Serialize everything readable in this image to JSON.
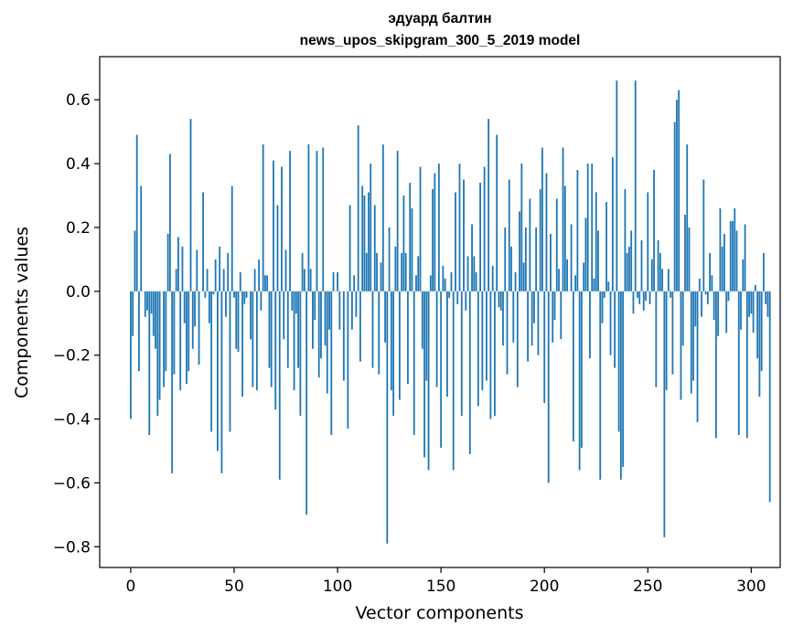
{
  "chart_data": {
    "type": "bar",
    "title_lines": [
      "эдуард балтин",
      "news_upos_skipgram_300_5_2019 model"
    ],
    "xlabel": "Vector components",
    "ylabel": "Components values",
    "xlim": [
      -15,
      314
    ],
    "ylim": [
      -0.865,
      0.735
    ],
    "xticks": [
      0,
      50,
      100,
      150,
      200,
      250,
      300
    ],
    "yticks": [
      -0.8,
      -0.6,
      -0.4,
      -0.2,
      0.0,
      0.2,
      0.4,
      0.6
    ],
    "ytick_labels": [
      "−0.8",
      "−0.6",
      "−0.4",
      "−0.2",
      "0.0",
      "0.2",
      "0.4",
      "0.6"
    ],
    "bar_color": "#1f77b4",
    "grid": false,
    "values": [
      -0.4,
      -0.14,
      0.19,
      0.49,
      -0.25,
      0.33,
      0.0,
      -0.08,
      -0.06,
      -0.45,
      -0.07,
      -0.14,
      -0.18,
      -0.39,
      -0.34,
      0.0,
      -0.3,
      -0.25,
      0.18,
      0.43,
      -0.57,
      -0.26,
      0.07,
      0.17,
      -0.31,
      0.14,
      -0.1,
      -0.29,
      -0.25,
      0.54,
      -0.18,
      -0.11,
      0.13,
      -0.23,
      0.0,
      0.31,
      -0.02,
      0.07,
      -0.1,
      -0.44,
      -0.01,
      0.1,
      -0.5,
      0.14,
      -0.57,
      0.07,
      -0.08,
      0.12,
      -0.44,
      0.33,
      -0.02,
      -0.18,
      -0.19,
      0.06,
      -0.33,
      -0.04,
      -0.02,
      0.0,
      -0.15,
      -0.3,
      0.07,
      -0.31,
      0.1,
      -0.06,
      0.46,
      0.05,
      0.05,
      -0.24,
      -0.3,
      0.41,
      -0.37,
      0.27,
      -0.59,
      0.39,
      -0.15,
      0.13,
      -0.24,
      0.44,
      -0.06,
      -0.31,
      -0.07,
      -0.24,
      -0.39,
      0.12,
      0.07,
      -0.7,
      0.46,
      0.07,
      -0.18,
      -0.09,
      0.44,
      -0.27,
      -0.21,
      0.45,
      -0.17,
      -0.32,
      -0.12,
      -0.45,
      0.06,
      0.0,
      0.06,
      -0.12,
      0.0,
      -0.28,
      0.0,
      -0.43,
      0.27,
      -0.12,
      0.05,
      -0.08,
      0.52,
      -0.22,
      0.33,
      0.3,
      0.12,
      0.31,
      0.4,
      -0.24,
      0.27,
      0.12,
      -0.26,
      0.09,
      0.46,
      -0.16,
      -0.79,
      0.2,
      -0.31,
      -0.39,
      0.14,
      0.44,
      -0.34,
      0.12,
      0.3,
      0.12,
      -0.29,
      0.34,
      0.26,
      -0.45,
      0.05,
      0.11,
      0.39,
      -0.18,
      -0.52,
      -0.28,
      -0.56,
      0.05,
      0.32,
      0.37,
      -0.3,
      0.4,
      -0.49,
      0.08,
      0.04,
      -0.33,
      -0.02,
      0.06,
      -0.56,
      0.31,
      -0.04,
      0.4,
      -0.39,
      0.35,
      -0.06,
      0.11,
      -0.51,
      0.21,
      0.11,
      0.06,
      -0.36,
      0.34,
      -0.31,
      0.39,
      -0.28,
      0.54,
      -0.4,
      0.08,
      -0.39,
      0.49,
      -0.05,
      -0.06,
      -0.17,
      0.2,
      -0.26,
      0.35,
      0.14,
      -0.16,
      0.06,
      -0.3,
      0.25,
      0.4,
      0.09,
      0.2,
      -0.22,
      0.29,
      -0.17,
      -0.1,
      0.2,
      -0.2,
      0.32,
      0.45,
      -0.35,
      0.37,
      -0.6,
      0.18,
      -0.16,
      -0.09,
      0.29,
      0.07,
      -0.15,
      0.45,
      0.33,
      0.1,
      0.0,
      0.21,
      -0.47,
      0.05,
      0.38,
      -0.56,
      -0.49,
      0.09,
      0.23,
      0.4,
      -0.21,
      0.4,
      0.04,
      0.31,
      0.19,
      -0.59,
      -0.1,
      -0.02,
      0.28,
      0.03,
      -0.2,
      0.42,
      -0.24,
      0.66,
      -0.44,
      -0.59,
      -0.55,
      0.32,
      0.12,
      0.14,
      0.19,
      -0.07,
      0.66,
      -0.02,
      -0.04,
      0.16,
      -0.06,
      -0.03,
      0.31,
      -0.04,
      0.1,
      0.38,
      -0.3,
      0.16,
      0.12,
      0.07,
      -0.77,
      -0.31,
      0.07,
      -0.02,
      -0.26,
      0.53,
      0.6,
      0.63,
      -0.34,
      -0.17,
      0.24,
      0.46,
      0.2,
      -0.32,
      -0.28,
      -0.11,
      -0.41,
      0.04,
      -0.08,
      0.35,
      -0.01,
      -0.04,
      0.12,
      0.05,
      -0.09,
      -0.46,
      -0.14,
      0.26,
      0.14,
      0.18,
      -0.13,
      -0.03,
      0.22,
      0.22,
      0.26,
      0.19,
      -0.45,
      -0.12,
      0.1,
      0.21,
      -0.46,
      -0.08,
      -0.07,
      -0.13,
      0.02,
      -0.21,
      -0.33,
      -0.25,
      0.12,
      -0.04,
      -0.08,
      -0.66
    ]
  }
}
